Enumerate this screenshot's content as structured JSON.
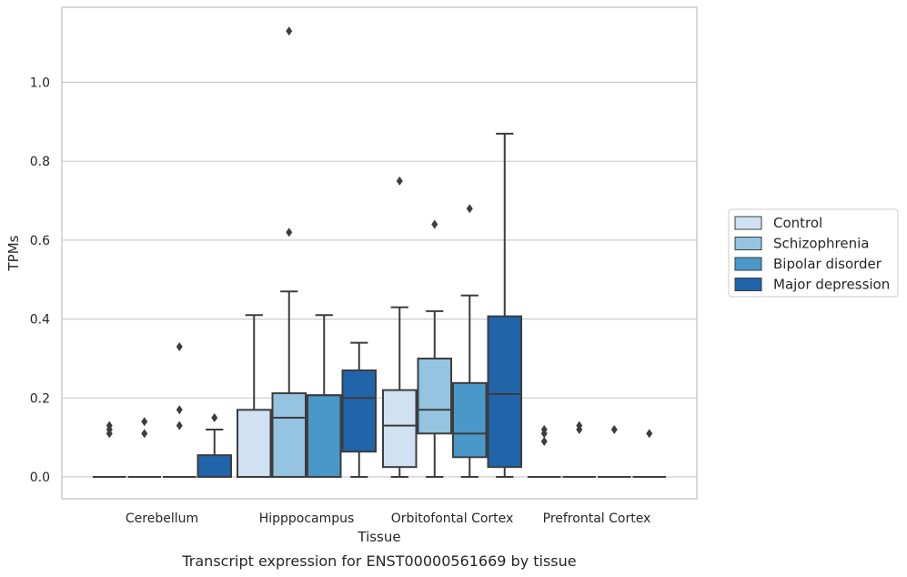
{
  "caption": "Transcript expression for ENST00000561669 by tissue",
  "chart_data": {
    "type": "box",
    "xlabel": "Tissue",
    "ylabel": "TPMs",
    "ylim": [
      -0.055,
      1.19
    ],
    "yticks": [
      0.0,
      0.2,
      0.4,
      0.6,
      0.8,
      1.0
    ],
    "ytick_labels": [
      "0.0",
      "0.2",
      "0.4",
      "0.6",
      "0.8",
      "1.0"
    ],
    "grid": "horizontal",
    "legend_position": "right",
    "categories": [
      "Cerebellum",
      "Hipppocampus",
      "Orbitofontal Cortex",
      "Prefrontal Cortex"
    ],
    "series": [
      {
        "name": "Control",
        "color": "#d0e1f2",
        "boxes": [
          {
            "q1": 0,
            "median": 0,
            "q3": 0,
            "whisker_low": 0,
            "whisker_high": 0,
            "outliers": [
              0.11,
              0.12,
              0.13
            ]
          },
          {
            "q1": 0,
            "median": 0,
            "q3": 0.17,
            "whisker_low": 0,
            "whisker_high": 0.41,
            "outliers": []
          },
          {
            "q1": 0.025,
            "median": 0.13,
            "q3": 0.22,
            "whisker_low": 0,
            "whisker_high": 0.43,
            "outliers": [
              0.75
            ]
          },
          {
            "q1": 0,
            "median": 0,
            "q3": 0,
            "whisker_low": 0,
            "whisker_high": 0,
            "outliers": [
              0.09,
              0.11,
              0.12
            ]
          }
        ]
      },
      {
        "name": "Schizophrenia",
        "color": "#94c4df",
        "boxes": [
          {
            "q1": 0,
            "median": 0,
            "q3": 0,
            "whisker_low": 0,
            "whisker_high": 0,
            "outliers": [
              0.11,
              0.14
            ]
          },
          {
            "q1": 0,
            "median": 0.15,
            "q3": 0.212,
            "whisker_low": 0,
            "whisker_high": 0.47,
            "outliers": [
              0.62,
              1.13
            ]
          },
          {
            "q1": 0.11,
            "median": 0.17,
            "q3": 0.3,
            "whisker_low": 0,
            "whisker_high": 0.42,
            "outliers": [
              0.64
            ]
          },
          {
            "q1": 0,
            "median": 0,
            "q3": 0,
            "whisker_low": 0,
            "whisker_high": 0,
            "outliers": [
              0.12,
              0.13
            ]
          }
        ]
      },
      {
        "name": "Bipolar disorder",
        "color": "#4a98c9",
        "boxes": [
          {
            "q1": 0,
            "median": 0,
            "q3": 0,
            "whisker_low": 0,
            "whisker_high": 0,
            "outliers": [
              0.13,
              0.17,
              0.33
            ]
          },
          {
            "q1": 0,
            "median": 0.207,
            "q3": 0.207,
            "whisker_low": 0,
            "whisker_high": 0.41,
            "outliers": []
          },
          {
            "q1": 0.05,
            "median": 0.11,
            "q3": 0.238,
            "whisker_low": 0,
            "whisker_high": 0.46,
            "outliers": [
              0.68
            ]
          },
          {
            "q1": 0,
            "median": 0,
            "q3": 0,
            "whisker_low": 0,
            "whisker_high": 0,
            "outliers": [
              0.12
            ]
          }
        ]
      },
      {
        "name": "Major depression",
        "color": "#2064aa",
        "boxes": [
          {
            "q1": 0,
            "median": 0,
            "q3": 0.055,
            "whisker_low": 0,
            "whisker_high": 0.12,
            "outliers": [
              0.15
            ]
          },
          {
            "q1": 0.064,
            "median": 0.2,
            "q3": 0.27,
            "whisker_low": 0,
            "whisker_high": 0.34,
            "outliers": []
          },
          {
            "q1": 0.025,
            "median": 0.21,
            "q3": 0.407,
            "whisker_low": 0,
            "whisker_high": 0.87,
            "outliers": []
          },
          {
            "q1": 0,
            "median": 0,
            "q3": 0,
            "whisker_low": 0,
            "whisker_high": 0,
            "outliers": [
              0.11
            ]
          }
        ]
      }
    ]
  }
}
